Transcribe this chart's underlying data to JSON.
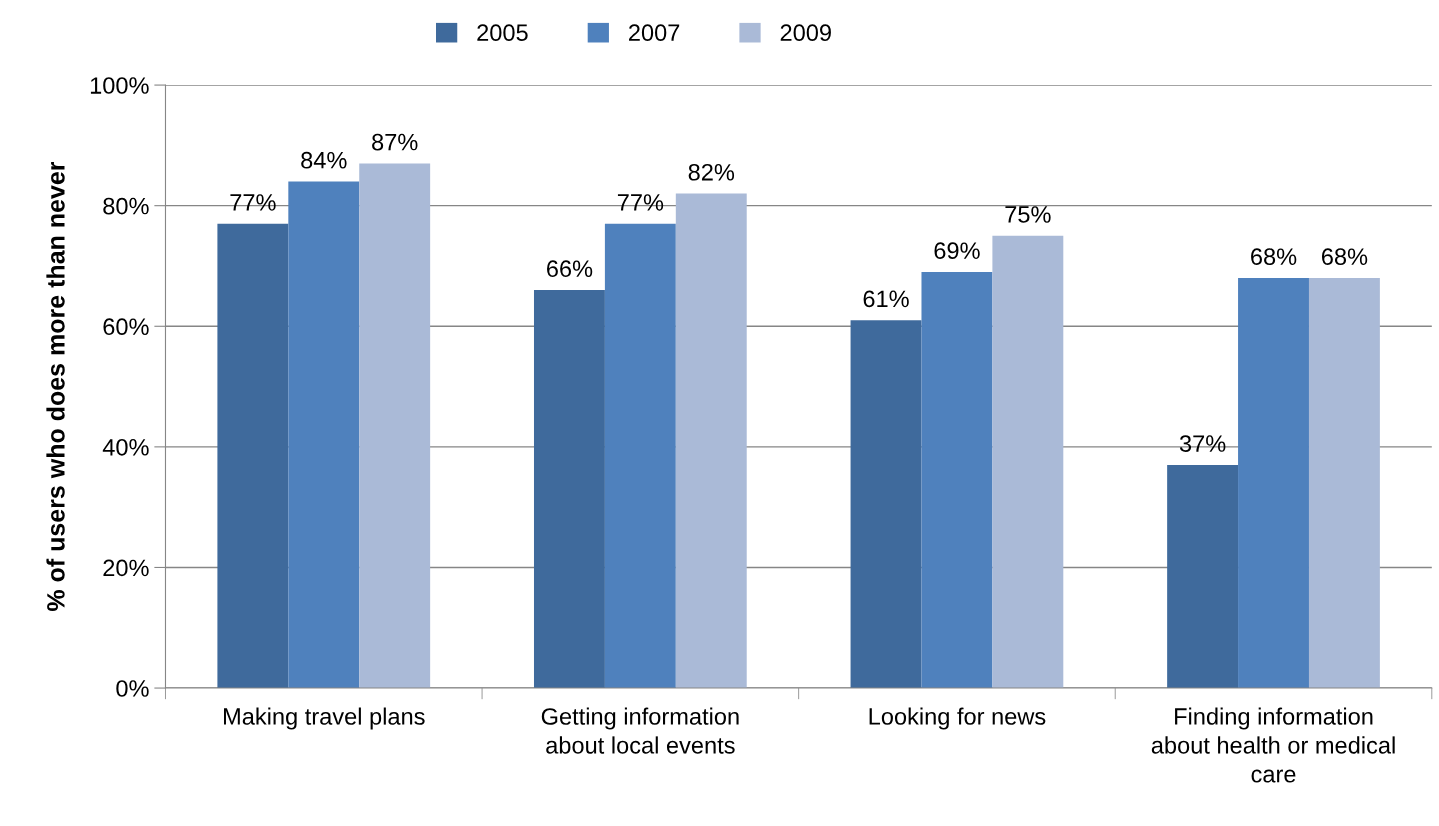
{
  "chart_data": {
    "type": "bar",
    "ylabel": "% of users who does more than never",
    "categories": [
      "Making travel plans",
      "Getting information\nabout local events",
      "Looking for news",
      "Finding information\nabout health or medical\ncare"
    ],
    "series": [
      {
        "name": "2005",
        "color": "#3f6a9c",
        "values": [
          77,
          66,
          61,
          37
        ],
        "value_labels": [
          "77%",
          "66%",
          "61%",
          "37%"
        ]
      },
      {
        "name": "2007",
        "color": "#4f81bd",
        "values": [
          84,
          77,
          69,
          68
        ],
        "value_labels": [
          "84%",
          "77%",
          "69%",
          "68%"
        ]
      },
      {
        "name": "2009",
        "color": "#aabad7",
        "values": [
          87,
          82,
          75,
          68
        ],
        "value_labels": [
          "87%",
          "82%",
          "75%",
          "68%"
        ]
      }
    ],
    "ylim": [
      0,
      100
    ],
    "yticks": [
      {
        "value": 0,
        "label": "0%"
      },
      {
        "value": 20,
        "label": "20%"
      },
      {
        "value": 40,
        "label": "40%"
      },
      {
        "value": 60,
        "label": "60%"
      },
      {
        "value": 80,
        "label": "80%"
      },
      {
        "value": 100,
        "label": "100%"
      }
    ],
    "grid": "y",
    "legend": "top"
  }
}
